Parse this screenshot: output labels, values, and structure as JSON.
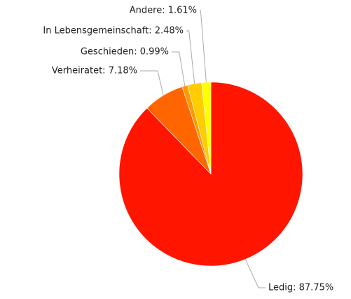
{
  "chart_data": {
    "type": "pie",
    "values": [
      87.75,
      7.18,
      0.99,
      2.48,
      1.61
    ],
    "value_labels": [
      "Ledig: 87.75%",
      "Verheiratet: 7.18%",
      "Geschieden: 0.99%",
      "In Lebensgemeinschaft: 2.48%",
      "Andere: 1.61%"
    ],
    "colors": [
      "#ff1500",
      "#ff6600",
      "#ff9900",
      "#ffcc00",
      "#ffff00"
    ]
  }
}
